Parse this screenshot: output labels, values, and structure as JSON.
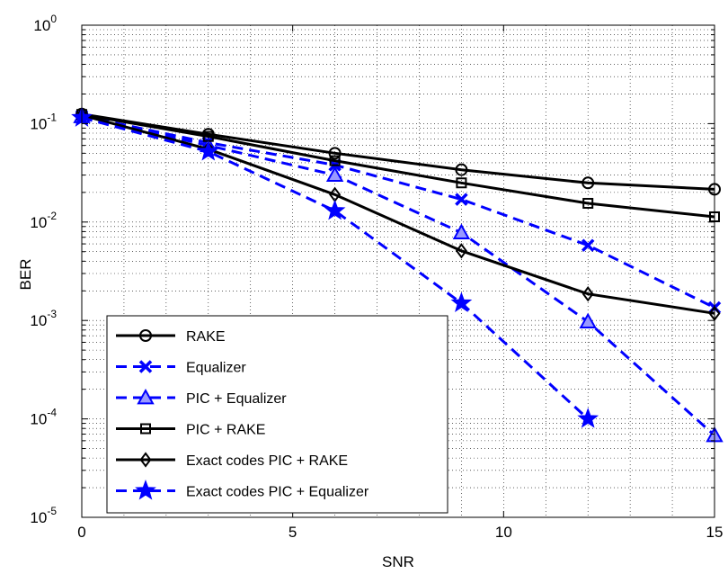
{
  "chart_data": {
    "type": "line",
    "xlabel": "SNR",
    "ylabel": "BER",
    "xlim": [
      0,
      15
    ],
    "ylim": [
      1e-05,
      1
    ],
    "yscale": "log",
    "grid": true,
    "legend_position": "bottom-left",
    "x_ticks": [
      {
        "value": 0,
        "label": "0"
      },
      {
        "value": 5,
        "label": "5"
      },
      {
        "value": 10,
        "label": "10"
      },
      {
        "value": 15,
        "label": "15"
      }
    ],
    "y_ticks": [
      {
        "value": 1,
        "base": "10",
        "exp": "0"
      },
      {
        "value": 0.1,
        "base": "10",
        "exp": "-1"
      },
      {
        "value": 0.01,
        "base": "10",
        "exp": "-2"
      },
      {
        "value": 0.001,
        "base": "10",
        "exp": "-3"
      },
      {
        "value": 0.0001,
        "base": "10",
        "exp": "-4"
      },
      {
        "value": 1e-05,
        "base": "10",
        "exp": "-5"
      }
    ],
    "series": [
      {
        "name": "RAKE",
        "color": "#000000",
        "dashed": false,
        "marker": "circle",
        "x": [
          0,
          3,
          6,
          9,
          12,
          15
        ],
        "y": [
          0.125,
          0.078,
          0.05,
          0.034,
          0.025,
          0.0215
        ]
      },
      {
        "name": "Equalizer",
        "color": "#0000ff",
        "dashed": true,
        "marker": "x",
        "x": [
          0,
          3,
          6,
          9,
          12,
          15
        ],
        "y": [
          0.12,
          0.064,
          0.038,
          0.017,
          0.0058,
          0.00135
        ]
      },
      {
        "name": "PIC + Equalizer",
        "color": "#0000ff",
        "dashed": true,
        "marker": "triangle",
        "x": [
          0,
          3,
          6,
          9,
          12,
          15
        ],
        "y": [
          0.118,
          0.06,
          0.03,
          0.0078,
          0.00097,
          6.8e-05
        ]
      },
      {
        "name": "PIC + RAKE",
        "color": "#000000",
        "dashed": false,
        "marker": "square",
        "x": [
          0,
          3,
          6,
          9,
          12,
          15
        ],
        "y": [
          0.124,
          0.074,
          0.042,
          0.025,
          0.0155,
          0.0113
        ]
      },
      {
        "name": "Exact codes PIC + RAKE",
        "color": "#000000",
        "dashed": false,
        "marker": "diamond",
        "x": [
          0,
          3,
          6,
          9,
          12,
          15
        ],
        "y": [
          0.122,
          0.055,
          0.019,
          0.0051,
          0.00186,
          0.00118
        ]
      },
      {
        "name": "Exact codes PIC + Equalizer",
        "color": "#0000ff",
        "dashed": true,
        "marker": "star",
        "x": [
          0,
          3,
          6,
          9,
          12
        ],
        "y": [
          0.115,
          0.052,
          0.013,
          0.0015,
          0.0001
        ]
      }
    ]
  }
}
